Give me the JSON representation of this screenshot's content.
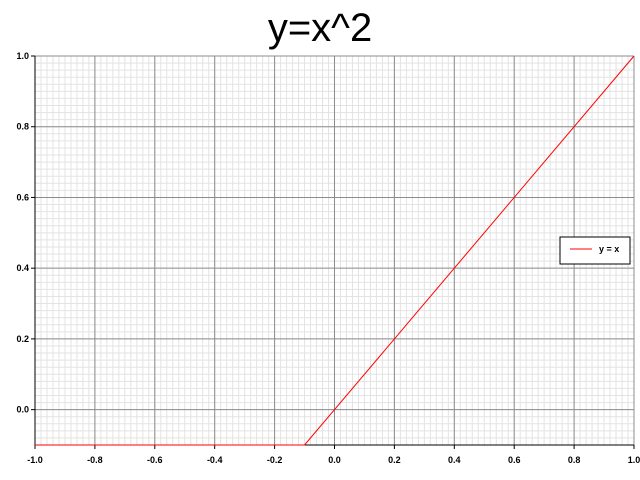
{
  "chart_data": {
    "type": "line",
    "title": "y=x^2",
    "xlabel": "",
    "ylabel": "",
    "xlim": [
      -1.0,
      1.0
    ],
    "ylim": [
      -0.1,
      1.0
    ],
    "x_ticks": [
      "-1.0",
      "-0.8",
      "-0.6",
      "-0.4",
      "-0.2",
      "0.0",
      "0.2",
      "0.4",
      "0.6",
      "0.8",
      "1.0"
    ],
    "y_ticks": [
      "0.0",
      "0.2",
      "0.4",
      "0.6",
      "0.8",
      "1.0"
    ],
    "grid": true,
    "legend_position": "right",
    "series": [
      {
        "name": "y = x",
        "color": "#ff0000",
        "x": [
          -1.0,
          -0.1,
          1.0
        ],
        "y": [
          -0.1,
          -0.1,
          1.0
        ]
      }
    ]
  }
}
